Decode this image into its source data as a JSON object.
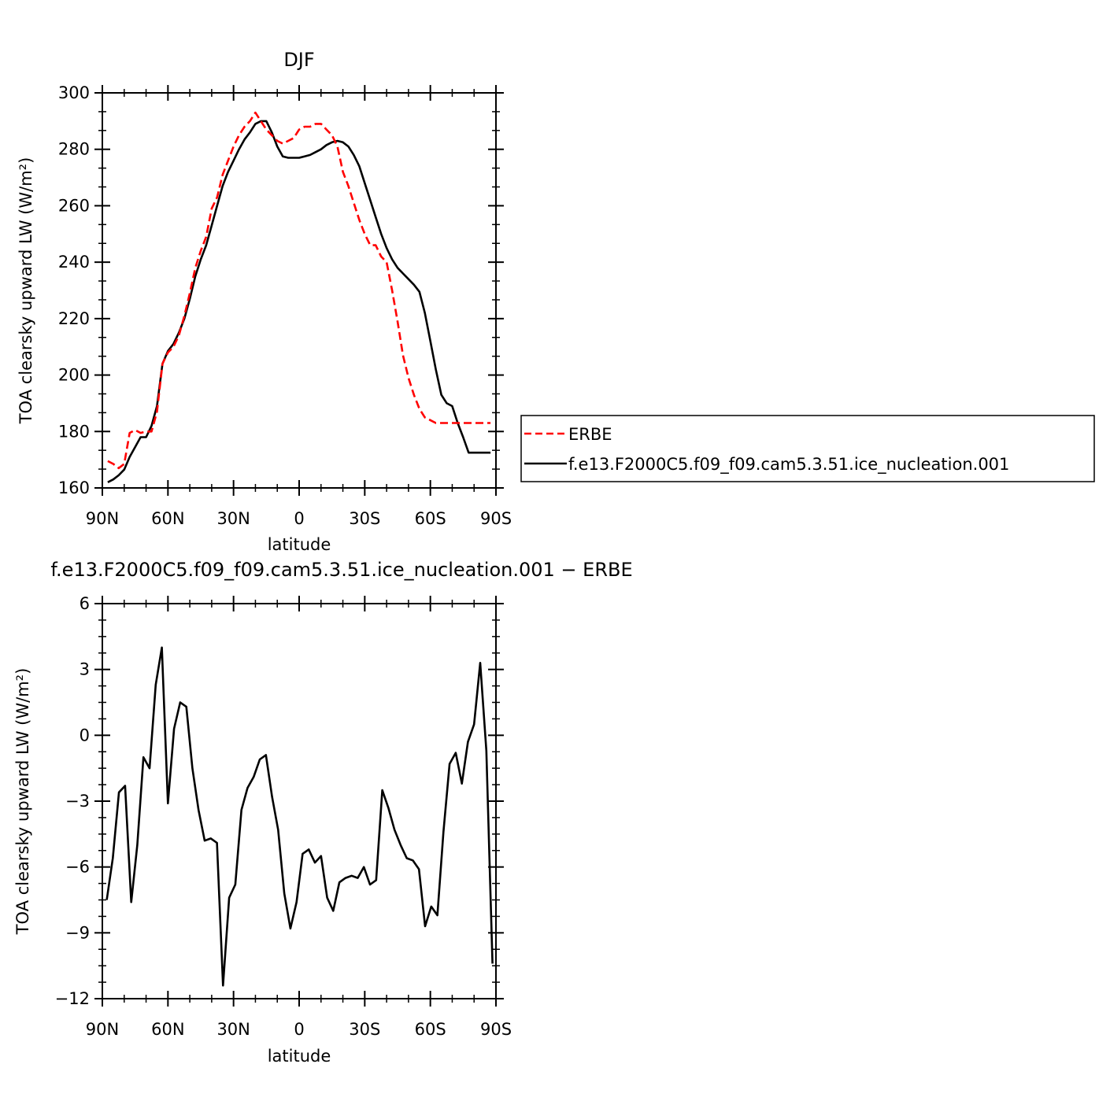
{
  "chart_data": [
    {
      "type": "line",
      "title": "DJF",
      "xlabel": "latitude",
      "ylabel": "TOA clearsky upward LW (W/m²)",
      "ylim": [
        160,
        300
      ],
      "yticks": [
        160,
        180,
        200,
        220,
        240,
        260,
        280,
        300
      ],
      "xlim": [
        -90,
        90
      ],
      "xticks": [
        -90,
        -60,
        -30,
        0,
        30,
        60,
        90
      ],
      "xticklabels": [
        "90N",
        "60N",
        "30N",
        "0",
        "30S",
        "60S",
        "90S"
      ],
      "grid": false,
      "legend_position": "right",
      "x": [
        -87.5,
        -85,
        -82.5,
        -80,
        -77.5,
        -75,
        -72.5,
        -70,
        -67.5,
        -65,
        -62.5,
        -60,
        -57.5,
        -55,
        -52.5,
        -50,
        -47.5,
        -45,
        -42.5,
        -40,
        -37.5,
        -35,
        -32.5,
        -30,
        -27.5,
        -25,
        -22.5,
        -20,
        -17.5,
        -15,
        -12.5,
        -10,
        -7.5,
        -5,
        -2.5,
        0,
        2.5,
        5,
        7.5,
        10,
        12.5,
        15,
        17.5,
        20,
        22.5,
        25,
        27.5,
        30,
        32.5,
        35,
        37.5,
        40,
        42.5,
        45,
        47.5,
        50,
        52.5,
        55,
        57.5,
        60,
        62.5,
        65,
        67.5,
        70,
        72.5,
        75,
        77.5,
        80,
        82.5,
        85,
        87.5
      ],
      "series": [
        {
          "name": "ERBE",
          "color": "#ff0000",
          "dash": "dashed",
          "values": [
            169.5,
            168.5,
            167,
            168.5,
            179.5,
            180.5,
            179.5,
            180,
            180,
            187,
            204,
            208,
            210,
            214,
            221,
            229,
            238,
            244,
            249,
            259,
            263,
            271,
            276,
            281,
            285,
            288,
            290,
            293,
            290,
            287,
            285,
            283,
            282,
            283,
            284,
            287,
            288,
            288,
            289,
            289,
            287,
            285,
            281,
            272,
            267,
            261,
            255,
            250,
            246,
            246,
            242,
            240,
            230,
            219,
            207,
            199,
            193,
            188,
            185,
            184,
            183,
            183,
            183,
            183,
            183,
            183,
            183,
            183,
            183,
            183,
            183
          ],
          "values_note_hidden": ""
        },
        {
          "name": "f.e13.F2000C5.f09_f09.cam5.3.51.ice_nucleation.001",
          "color": "#000000",
          "dash": "solid",
          "values": [
            162,
            163,
            164.5,
            166.5,
            171,
            174.5,
            178,
            178,
            182,
            189,
            204,
            208.5,
            211,
            215,
            220,
            227,
            235,
            241,
            246,
            253,
            260,
            267,
            272,
            276,
            280,
            283.5,
            286,
            289,
            290,
            290,
            286,
            281,
            277.5,
            277,
            277,
            277,
            277.5,
            278,
            279,
            280,
            281.5,
            282.5,
            283,
            282.5,
            281,
            278,
            274,
            268,
            262,
            256,
            250,
            245,
            241,
            238,
            236,
            234,
            232,
            229.5,
            222,
            212,
            202,
            193,
            190,
            189,
            183,
            178,
            172.5,
            172.5,
            172.5,
            172.5,
            172.5
          ]
        }
      ]
    },
    {
      "type": "line",
      "title": "f.e13.F2000C5.f09_f09.cam5.3.51.ice_nucleation.001 − ERBE",
      "xlabel": "latitude",
      "ylabel": "TOA clearsky upward LW (W/m²)",
      "ylim": [
        -12,
        6
      ],
      "yticks": [
        -12,
        -9,
        -6,
        -3,
        0,
        3,
        6
      ],
      "yticklabels": [
        "−12",
        "−9",
        "−6",
        "−3",
        "0",
        "3",
        "6"
      ],
      "xlim": [
        -90,
        90
      ],
      "xticks": [
        -90,
        -60,
        -30,
        0,
        30,
        60,
        90
      ],
      "xticklabels": [
        "90N",
        "60N",
        "30N",
        "0",
        "30S",
        "60S",
        "90S"
      ],
      "grid": false,
      "x": [
        -88,
        -85.2,
        -82.4,
        -79.6,
        -76.8,
        -74,
        -71.2,
        -68.4,
        -65.6,
        -62.8,
        -60,
        -57.2,
        -54.4,
        -51.6,
        -48.8,
        -46,
        -43.2,
        -40.4,
        -37.6,
        -34.8,
        -32,
        -29.2,
        -26.4,
        -23.6,
        -20.8,
        -18,
        -15.2,
        -12.4,
        -9.6,
        -6.8,
        -4,
        -1.2,
        1.6,
        4.4,
        7.2,
        10,
        12.8,
        15.6,
        18.4,
        21.2,
        24,
        26.8,
        29.6,
        32.4,
        35.2,
        38,
        40.8,
        43.6,
        46.4,
        49.2,
        52,
        54.8,
        57.6,
        60.4,
        63.2,
        66,
        68.8,
        71.6,
        74.4,
        77.2,
        80,
        82.8,
        85.6,
        88.4
      ],
      "series": [
        {
          "name": "",
          "color": "#000000",
          "dash": "solid",
          "values": [
            -7.5,
            -5.6,
            -2.6,
            -2.3,
            -7.6,
            -5,
            -1,
            -1.5,
            2.3,
            4,
            -3.1,
            0.3,
            1.5,
            1.3,
            -1.5,
            -3.4,
            -4.8,
            -4.7,
            -4.9,
            -11.4,
            -7.4,
            -6.8,
            -3.4,
            -2.4,
            -1.9,
            -1.1,
            -0.9,
            -2.8,
            -4.3,
            -7.2,
            -8.8,
            -7.6,
            -5.4,
            -5.2,
            -5.8,
            -5.5,
            -7.4,
            -8,
            -6.7,
            -6.5,
            -6.4,
            -6.5,
            -6,
            -6.8,
            -6.6,
            -2.5,
            -3.3,
            -4.3,
            -5,
            -5.6,
            -5.7,
            -6.1,
            -8.7,
            -7.8,
            -8.2,
            -4.4,
            -1.3,
            -0.8,
            -2.2,
            -0.3,
            0.5,
            3.3,
            -0.7,
            -10.4
          ]
        }
      ]
    }
  ]
}
